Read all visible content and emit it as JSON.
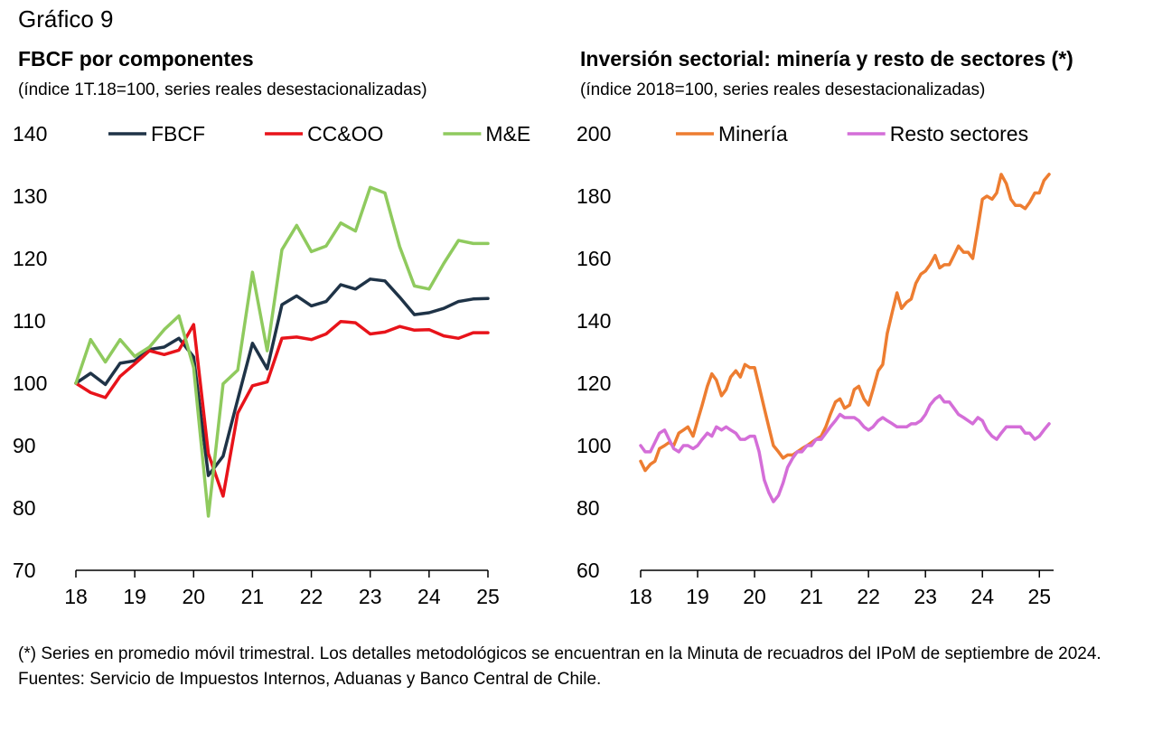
{
  "figure_label": "Gráfico 9",
  "footnote": "(*) Series en promedio móvil trimestral. Los detalles metodológicos se encuentran en la Minuta de recuadros del IPoM de septiembre de 2024.",
  "source": "Fuentes: Servicio de Impuestos Internos, Aduanas y Banco Central de Chile.",
  "chart_data": [
    {
      "type": "line",
      "title": "FBCF por componentes",
      "subtitle": "(índice 1T.18=100, series reales desestacionalizadas)",
      "xlabel": "",
      "ylabel": "",
      "ylim": [
        70,
        140
      ],
      "yticks": [
        70,
        80,
        90,
        100,
        110,
        120,
        130,
        140
      ],
      "xlim": [
        2018,
        2025
      ],
      "xtick_labels": [
        "18",
        "19",
        "20",
        "21",
        "22",
        "23",
        "24",
        "25"
      ],
      "grid": false,
      "legend": "top",
      "x": [
        2018.0,
        2018.25,
        2018.5,
        2018.75,
        2019.0,
        2019.25,
        2019.5,
        2019.75,
        2020.0,
        2020.25,
        2020.5,
        2020.75,
        2021.0,
        2021.25,
        2021.5,
        2021.75,
        2022.0,
        2022.25,
        2022.5,
        2022.75,
        2023.0,
        2023.25,
        2023.5,
        2023.75,
        2024.0,
        2024.25,
        2024.5,
        2024.75,
        2025.0
      ],
      "series": [
        {
          "name": "FBCF",
          "color": "#1f3347",
          "values": [
            100.0,
            101.6,
            99.8,
            103.2,
            103.6,
            105.4,
            105.8,
            107.2,
            104.2,
            85.2,
            88.3,
            97.4,
            106.4,
            102.3,
            112.6,
            114.0,
            112.4,
            113.1,
            115.8,
            115.1,
            116.7,
            116.4,
            113.8,
            111.0,
            111.3,
            112.0,
            113.1,
            113.5,
            113.6
          ]
        },
        {
          "name": "CC&OO",
          "color": "#e8131a",
          "values": [
            100.0,
            98.5,
            97.7,
            101.1,
            103.1,
            105.2,
            104.6,
            105.3,
            109.4,
            88.7,
            81.9,
            95.2,
            99.6,
            100.2,
            107.2,
            107.4,
            107.0,
            107.9,
            109.9,
            109.7,
            107.9,
            108.2,
            109.1,
            108.5,
            108.6,
            107.6,
            107.2,
            108.1,
            108.1
          ]
        },
        {
          "name": "M&E",
          "color": "#8fca5e",
          "values": [
            100.0,
            107.0,
            103.4,
            107.0,
            104.3,
            105.8,
            108.6,
            110.8,
            102.5,
            78.7,
            99.9,
            102.1,
            117.8,
            105.2,
            121.4,
            125.3,
            121.1,
            122.0,
            125.7,
            124.4,
            131.4,
            130.5,
            121.9,
            115.6,
            115.1,
            119.2,
            122.9,
            122.4,
            122.4
          ]
        }
      ]
    },
    {
      "type": "line",
      "title": "Inversión sectorial: minería y resto de sectores (*)",
      "subtitle": "(índice 2018=100, series reales desestacionalizadas)",
      "xlabel": "",
      "ylabel": "",
      "ylim": [
        60,
        200
      ],
      "yticks": [
        60,
        80,
        100,
        120,
        140,
        160,
        180,
        200
      ],
      "xlim": [
        2018,
        2025.25
      ],
      "xtick_labels": [
        "18",
        "19",
        "20",
        "21",
        "22",
        "23",
        "24",
        "25"
      ],
      "grid": false,
      "legend": "top",
      "series": [
        {
          "name": "Minería",
          "color": "#ed7d31",
          "points": [
            [
              2018.0,
              95
            ],
            [
              2018.08,
              92
            ],
            [
              2018.17,
              94
            ],
            [
              2018.25,
              95
            ],
            [
              2018.33,
              99
            ],
            [
              2018.42,
              100
            ],
            [
              2018.5,
              101
            ],
            [
              2018.58,
              100
            ],
            [
              2018.67,
              104
            ],
            [
              2018.75,
              105
            ],
            [
              2018.83,
              106
            ],
            [
              2018.92,
              103
            ],
            [
              2019.0,
              108
            ],
            [
              2019.08,
              113
            ],
            [
              2019.17,
              119
            ],
            [
              2019.25,
              123
            ],
            [
              2019.33,
              121
            ],
            [
              2019.42,
              116
            ],
            [
              2019.5,
              118
            ],
            [
              2019.58,
              122
            ],
            [
              2019.67,
              124
            ],
            [
              2019.75,
              122
            ],
            [
              2019.83,
              126
            ],
            [
              2019.92,
              125
            ],
            [
              2020.0,
              125
            ],
            [
              2020.08,
              119
            ],
            [
              2020.17,
              112
            ],
            [
              2020.25,
              106
            ],
            [
              2020.33,
              100
            ],
            [
              2020.42,
              98
            ],
            [
              2020.5,
              96
            ],
            [
              2020.58,
              97
            ],
            [
              2020.67,
              97
            ],
            [
              2020.75,
              98
            ],
            [
              2020.83,
              99
            ],
            [
              2020.92,
              100
            ],
            [
              2021.0,
              101
            ],
            [
              2021.08,
              102
            ],
            [
              2021.17,
              103
            ],
            [
              2021.25,
              106
            ],
            [
              2021.33,
              110
            ],
            [
              2021.42,
              114
            ],
            [
              2021.5,
              115
            ],
            [
              2021.58,
              112
            ],
            [
              2021.67,
              113
            ],
            [
              2021.75,
              118
            ],
            [
              2021.83,
              119
            ],
            [
              2021.92,
              115
            ],
            [
              2022.0,
              113
            ],
            [
              2022.08,
              118
            ],
            [
              2022.17,
              124
            ],
            [
              2022.25,
              126
            ],
            [
              2022.33,
              136
            ],
            [
              2022.42,
              143
            ],
            [
              2022.5,
              149
            ],
            [
              2022.58,
              144
            ],
            [
              2022.67,
              146
            ],
            [
              2022.75,
              147
            ],
            [
              2022.83,
              152
            ],
            [
              2022.92,
              155
            ],
            [
              2023.0,
              156
            ],
            [
              2023.08,
              158
            ],
            [
              2023.17,
              161
            ],
            [
              2023.25,
              157
            ],
            [
              2023.33,
              158
            ],
            [
              2023.42,
              158
            ],
            [
              2023.5,
              161
            ],
            [
              2023.58,
              164
            ],
            [
              2023.67,
              162
            ],
            [
              2023.75,
              162
            ],
            [
              2023.83,
              160
            ],
            [
              2023.92,
              170
            ],
            [
              2024.0,
              179
            ],
            [
              2024.08,
              180
            ],
            [
              2024.17,
              179
            ],
            [
              2024.25,
              181
            ],
            [
              2024.33,
              187
            ],
            [
              2024.42,
              184
            ],
            [
              2024.5,
              179
            ],
            [
              2024.58,
              177
            ],
            [
              2024.67,
              177
            ],
            [
              2024.75,
              176
            ],
            [
              2024.83,
              178
            ],
            [
              2024.92,
              181
            ],
            [
              2025.0,
              181
            ],
            [
              2025.08,
              185
            ],
            [
              2025.17,
              187
            ]
          ]
        },
        {
          "name": "Resto sectores",
          "color": "#d46ed8",
          "points": [
            [
              2018.0,
              100
            ],
            [
              2018.08,
              98
            ],
            [
              2018.17,
              98
            ],
            [
              2018.25,
              101
            ],
            [
              2018.33,
              104
            ],
            [
              2018.42,
              105
            ],
            [
              2018.5,
              102
            ],
            [
              2018.58,
              99
            ],
            [
              2018.67,
              98
            ],
            [
              2018.75,
              100
            ],
            [
              2018.83,
              100
            ],
            [
              2018.92,
              99
            ],
            [
              2019.0,
              100
            ],
            [
              2019.08,
              102
            ],
            [
              2019.17,
              104
            ],
            [
              2019.25,
              103
            ],
            [
              2019.33,
              106
            ],
            [
              2019.42,
              105
            ],
            [
              2019.5,
              106
            ],
            [
              2019.58,
              105
            ],
            [
              2019.67,
              104
            ],
            [
              2019.75,
              102
            ],
            [
              2019.83,
              102
            ],
            [
              2019.92,
              103
            ],
            [
              2020.0,
              103
            ],
            [
              2020.08,
              98
            ],
            [
              2020.17,
              89
            ],
            [
              2020.25,
              85
            ],
            [
              2020.33,
              82
            ],
            [
              2020.42,
              84
            ],
            [
              2020.5,
              88
            ],
            [
              2020.58,
              93
            ],
            [
              2020.67,
              96
            ],
            [
              2020.75,
              98
            ],
            [
              2020.83,
              98
            ],
            [
              2020.92,
              100
            ],
            [
              2021.0,
              100
            ],
            [
              2021.08,
              102
            ],
            [
              2021.17,
              102
            ],
            [
              2021.25,
              104
            ],
            [
              2021.33,
              106
            ],
            [
              2021.42,
              108
            ],
            [
              2021.5,
              110
            ],
            [
              2021.58,
              109
            ],
            [
              2021.67,
              109
            ],
            [
              2021.75,
              109
            ],
            [
              2021.83,
              108
            ],
            [
              2021.92,
              106
            ],
            [
              2022.0,
              105
            ],
            [
              2022.08,
              106
            ],
            [
              2022.17,
              108
            ],
            [
              2022.25,
              109
            ],
            [
              2022.33,
              108
            ],
            [
              2022.42,
              107
            ],
            [
              2022.5,
              106
            ],
            [
              2022.58,
              106
            ],
            [
              2022.67,
              106
            ],
            [
              2022.75,
              107
            ],
            [
              2022.83,
              107
            ],
            [
              2022.92,
              108
            ],
            [
              2023.0,
              110
            ],
            [
              2023.08,
              113
            ],
            [
              2023.17,
              115
            ],
            [
              2023.25,
              116
            ],
            [
              2023.33,
              114
            ],
            [
              2023.42,
              114
            ],
            [
              2023.5,
              112
            ],
            [
              2023.58,
              110
            ],
            [
              2023.67,
              109
            ],
            [
              2023.75,
              108
            ],
            [
              2023.83,
              107
            ],
            [
              2023.92,
              109
            ],
            [
              2024.0,
              108
            ],
            [
              2024.08,
              105
            ],
            [
              2024.17,
              103
            ],
            [
              2024.25,
              102
            ],
            [
              2024.33,
              104
            ],
            [
              2024.42,
              106
            ],
            [
              2024.5,
              106
            ],
            [
              2024.58,
              106
            ],
            [
              2024.67,
              106
            ],
            [
              2024.75,
              104
            ],
            [
              2024.83,
              104
            ],
            [
              2024.92,
              102
            ],
            [
              2025.0,
              103
            ],
            [
              2025.08,
              105
            ],
            [
              2025.17,
              107
            ]
          ]
        }
      ]
    }
  ]
}
